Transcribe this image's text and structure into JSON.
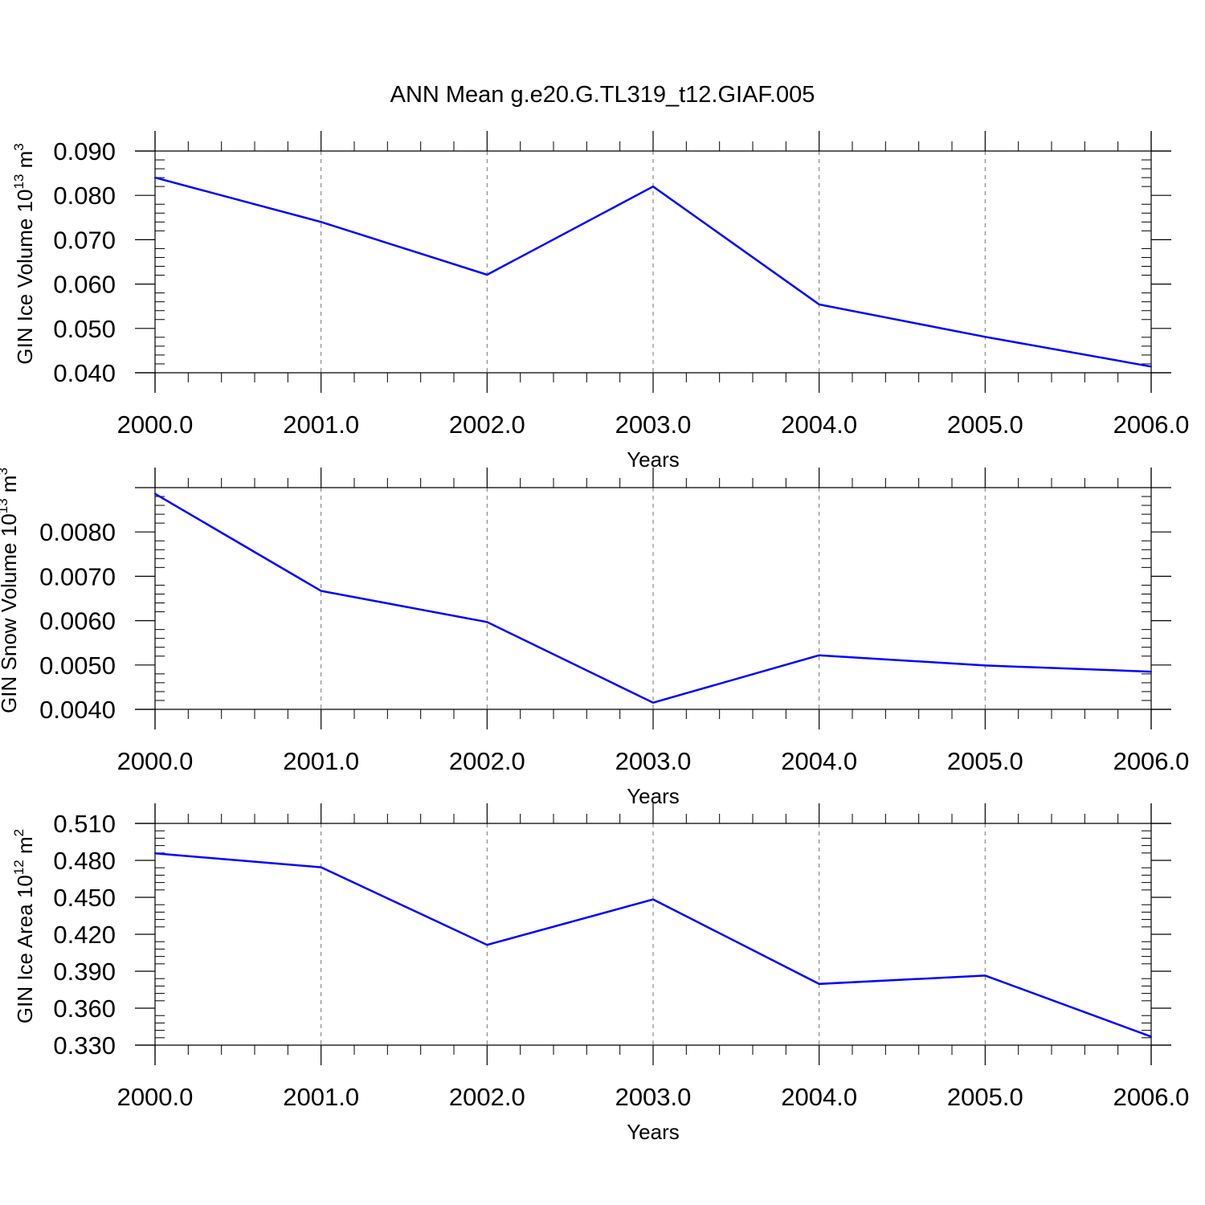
{
  "title": "ANN Mean g.e20.G.TL319_t12.GIAF.005",
  "colors": {
    "line": "#0000ff",
    "axis": "#000000",
    "grid": "#777777"
  },
  "chart_data": [
    {
      "type": "line",
      "title": "ANN Mean g.e20.G.TL319_t12.GIAF.005",
      "xlabel": "Years",
      "ylabel": {
        "text": "GIN Ice Volume 10",
        "exp": "13",
        "unit": " m",
        "unit_exp": "3"
      },
      "x": [
        2000,
        2001,
        2002,
        2003,
        2004,
        2005,
        2006
      ],
      "x_tick_labels": [
        "2000.0",
        "2001.0",
        "2002.0",
        "2003.0",
        "2004.0",
        "2005.0",
        "2006.0"
      ],
      "xlim": [
        2000,
        2006
      ],
      "ylim": [
        0.04,
        0.09
      ],
      "y_ticks": [
        0.04,
        0.05,
        0.06,
        0.07,
        0.08,
        0.09
      ],
      "y_tick_labels": [
        "0.040",
        "0.050",
        "0.060",
        "0.070",
        "0.080",
        "0.090"
      ],
      "series": [
        {
          "values": [
            0.084,
            0.074,
            0.0621,
            0.082,
            0.0554,
            0.0481,
            0.0414
          ]
        }
      ],
      "grid": "vertical dashed at major x ticks"
    },
    {
      "type": "line",
      "xlabel": "Years",
      "ylabel": {
        "text": "GIN Snow Volume 10",
        "exp": "13",
        "unit": " m",
        "unit_exp": "3"
      },
      "x": [
        2000,
        2001,
        2002,
        2003,
        2004,
        2005,
        2006
      ],
      "x_tick_labels": [
        "2000.0",
        "2001.0",
        "2002.0",
        "2003.0",
        "2004.0",
        "2005.0",
        "2006.0"
      ],
      "xlim": [
        2000,
        2006
      ],
      "ylim": [
        0.004,
        0.009
      ],
      "y_ticks": [
        0.004,
        0.005,
        0.006,
        0.007,
        0.008
      ],
      "y_tick_labels": [
        "0.0040",
        "0.0050",
        "0.0060",
        "0.0070",
        "0.0080"
      ],
      "series": [
        {
          "values": [
            0.00886,
            0.00667,
            0.00597,
            0.00415,
            0.00522,
            0.00499,
            0.00485
          ]
        }
      ],
      "grid": "vertical dashed at major x ticks"
    },
    {
      "type": "line",
      "xlabel": "Years",
      "ylabel": {
        "text": "GIN Ice Area 10",
        "exp": "12",
        "unit": " m",
        "unit_exp": "2"
      },
      "x": [
        2000,
        2001,
        2002,
        2003,
        2004,
        2005,
        2006
      ],
      "x_tick_labels": [
        "2000.0",
        "2001.0",
        "2002.0",
        "2003.0",
        "2004.0",
        "2005.0",
        "2006.0"
      ],
      "xlim": [
        2000,
        2006
      ],
      "ylim": [
        0.33,
        0.51
      ],
      "y_ticks": [
        0.33,
        0.36,
        0.39,
        0.42,
        0.45,
        0.48,
        0.51
      ],
      "y_tick_labels": [
        "0.330",
        "0.360",
        "0.390",
        "0.420",
        "0.450",
        "0.480",
        "0.510"
      ],
      "series": [
        {
          "values": [
            0.4857,
            0.4744,
            0.4114,
            0.4483,
            0.3797,
            0.3865,
            0.3369
          ]
        }
      ],
      "grid": "vertical dashed at major x ticks"
    }
  ]
}
